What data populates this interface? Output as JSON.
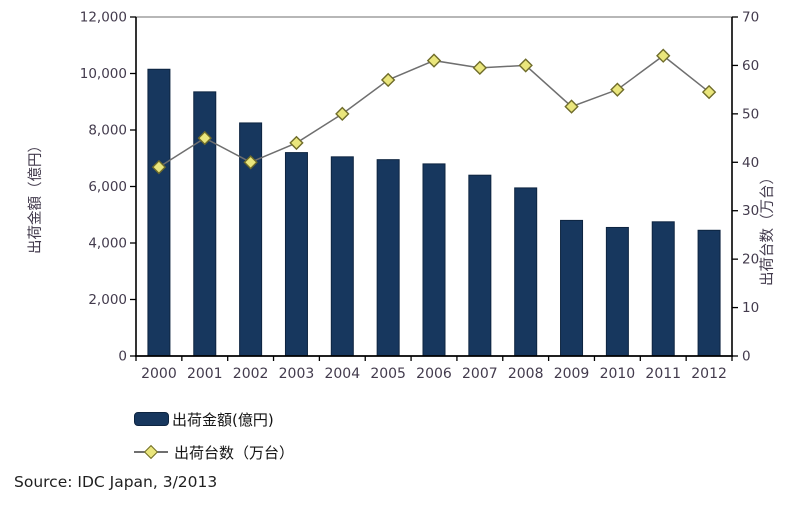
{
  "source_note": "Source: IDC Japan, 3/2013",
  "colors": {
    "bar_fill": "#17375E",
    "bar_border": "#0D2440",
    "line": "#6F6F6F",
    "marker_fill": "#EAE67C",
    "marker_stroke": "#6F6C2A",
    "axis_line": "#000000",
    "plot_top_border": "#8C8C8C",
    "tick_text": "#433B4D"
  },
  "chart_data": {
    "type": "combo",
    "title": "",
    "categories": [
      "2000",
      "2001",
      "2002",
      "2003",
      "2004",
      "2005",
      "2006",
      "2007",
      "2008",
      "2009",
      "2010",
      "2011",
      "2012"
    ],
    "series": [
      {
        "name": "出荷金額(億円)",
        "type": "bar",
        "axis": "left",
        "values": [
          10150,
          9350,
          8250,
          7200,
          7050,
          6950,
          6800,
          6400,
          5950,
          4800,
          4550,
          4750,
          4450
        ]
      },
      {
        "name": "出荷台数（万台）",
        "type": "line",
        "axis": "right",
        "values": [
          39,
          45,
          40,
          44,
          50,
          57,
          61,
          59.5,
          60,
          51.5,
          55,
          62,
          54.5
        ]
      }
    ],
    "left_axis": {
      "title": "出荷金額（億円）",
      "min": 0,
      "max": 12000,
      "step": 2000,
      "tick_labels": [
        "0",
        "2,000",
        "4,000",
        "6,000",
        "8,000",
        "10,000",
        "12,000"
      ]
    },
    "right_axis": {
      "title": "出荷台数（万台）",
      "min": 0,
      "max": 70,
      "step": 10,
      "tick_labels": [
        "0",
        "10",
        "20",
        "30",
        "40",
        "50",
        "60",
        "70"
      ]
    },
    "grid": "none",
    "legend_position": "bottom-left"
  }
}
